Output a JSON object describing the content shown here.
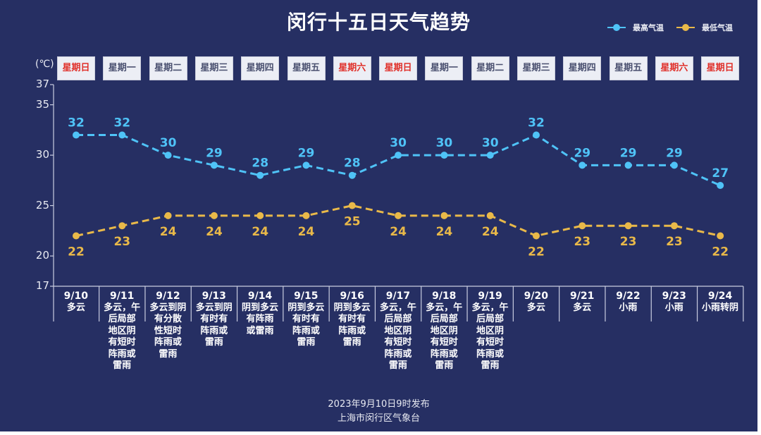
{
  "title": "闵行十五日天气趋势",
  "legend": [
    {
      "label": "最高气温",
      "color": "#4fc3f7"
    },
    {
      "label": "最低气温",
      "color": "#e9b949"
    }
  ],
  "unit_label": "(℃)",
  "weekdays": [
    {
      "label": "星期日",
      "weekend": true
    },
    {
      "label": "星期一",
      "weekend": false
    },
    {
      "label": "星期二",
      "weekend": false
    },
    {
      "label": "星期三",
      "weekend": false
    },
    {
      "label": "星期四",
      "weekend": false
    },
    {
      "label": "星期五",
      "weekend": false
    },
    {
      "label": "星期六",
      "weekend": true
    },
    {
      "label": "星期日",
      "weekend": true
    },
    {
      "label": "星期一",
      "weekend": false
    },
    {
      "label": "星期二",
      "weekend": false
    },
    {
      "label": "星期三",
      "weekend": false
    },
    {
      "label": "星期四",
      "weekend": false
    },
    {
      "label": "星期五",
      "weekend": false
    },
    {
      "label": "星期六",
      "weekend": true
    },
    {
      "label": "星期日",
      "weekend": true
    }
  ],
  "chart_data": {
    "type": "line",
    "title": "闵行十五日天气趋势",
    "ylabel": "(℃)",
    "ylim": [
      17,
      37
    ],
    "yticks": [
      "37",
      "35",
      "30",
      "25",
      "20",
      "17"
    ],
    "ytick_values": [
      37,
      35,
      30,
      25,
      20,
      17
    ],
    "categories": [
      "9/10",
      "9/11",
      "9/12",
      "9/13",
      "9/14",
      "9/15",
      "9/16",
      "9/17",
      "9/18",
      "9/19",
      "9/20",
      "9/21",
      "9/22",
      "9/23",
      "9/24"
    ],
    "series": [
      {
        "name": "最高气温",
        "color": "#4fc3f7",
        "label_position": "top",
        "values": [
          32,
          32,
          30,
          29,
          28,
          29,
          28,
          30,
          30,
          30,
          32,
          29,
          29,
          29,
          27
        ]
      },
      {
        "name": "最低气温",
        "color": "#e9b949",
        "label_position": "bottom",
        "values": [
          22,
          23,
          24,
          24,
          24,
          24,
          25,
          24,
          24,
          24,
          22,
          23,
          23,
          23,
          22
        ]
      }
    ],
    "legend_position": "top-right",
    "grid": false,
    "line_style": "dashed"
  },
  "weather": [
    {
      "date": "9/10",
      "desc": "多云"
    },
    {
      "date": "9/11",
      "desc": "多云，午\n后局部\n地区阴\n有短时\n阵雨或\n雷雨"
    },
    {
      "date": "9/12",
      "desc": "多云到阴\n有分散\n性短时\n阵雨或\n雷雨"
    },
    {
      "date": "9/13",
      "desc": "多云到阴\n有时有\n阵雨或\n雷雨"
    },
    {
      "date": "9/14",
      "desc": "阴到多云\n有阵雨\n或雷雨"
    },
    {
      "date": "9/15",
      "desc": "阴到多云\n有时有\n阵雨或\n雷雨"
    },
    {
      "date": "9/16",
      "desc": "阴到多云\n有时有\n阵雨或\n雷雨"
    },
    {
      "date": "9/17",
      "desc": "多云，午\n后局部\n地区阴\n有短时\n阵雨或\n雷雨"
    },
    {
      "date": "9/18",
      "desc": "多云，午\n后局部\n地区阴\n有短时\n阵雨或\n雷雨"
    },
    {
      "date": "9/19",
      "desc": "多云，午\n后局部\n地区阴\n有短时\n阵雨或\n雷雨"
    },
    {
      "date": "9/20",
      "desc": "多云"
    },
    {
      "date": "9/21",
      "desc": "多云"
    },
    {
      "date": "9/22",
      "desc": "小雨"
    },
    {
      "date": "9/23",
      "desc": "小雨"
    },
    {
      "date": "9/24",
      "desc": "小雨转阴"
    }
  ],
  "footer": {
    "issued": "2023年9月10日9时发布",
    "source": "上海市闵行区气象台"
  }
}
